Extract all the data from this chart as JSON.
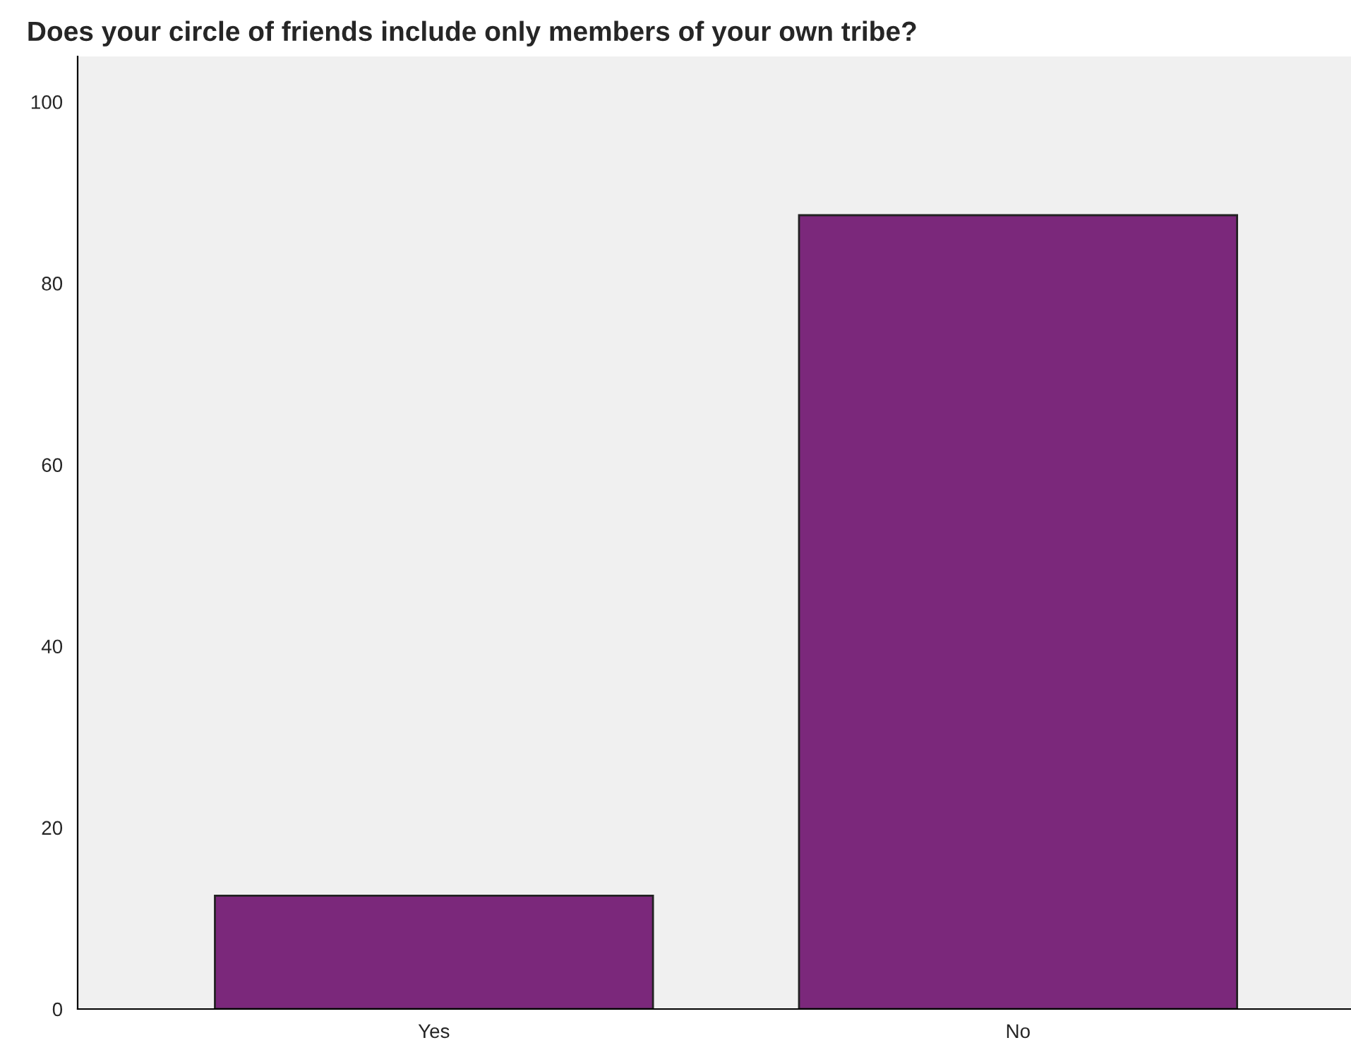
{
  "chart_data": {
    "type": "bar",
    "title": "Does your circle of friends include only members of your own tribe?",
    "categories": [
      "Yes",
      "No"
    ],
    "values": [
      12.5,
      87.5
    ],
    "color": "#7b287b",
    "ylim": [
      0,
      105
    ],
    "yticks": [
      0,
      20,
      40,
      60,
      80,
      100
    ],
    "grid": false,
    "legend": false
  }
}
